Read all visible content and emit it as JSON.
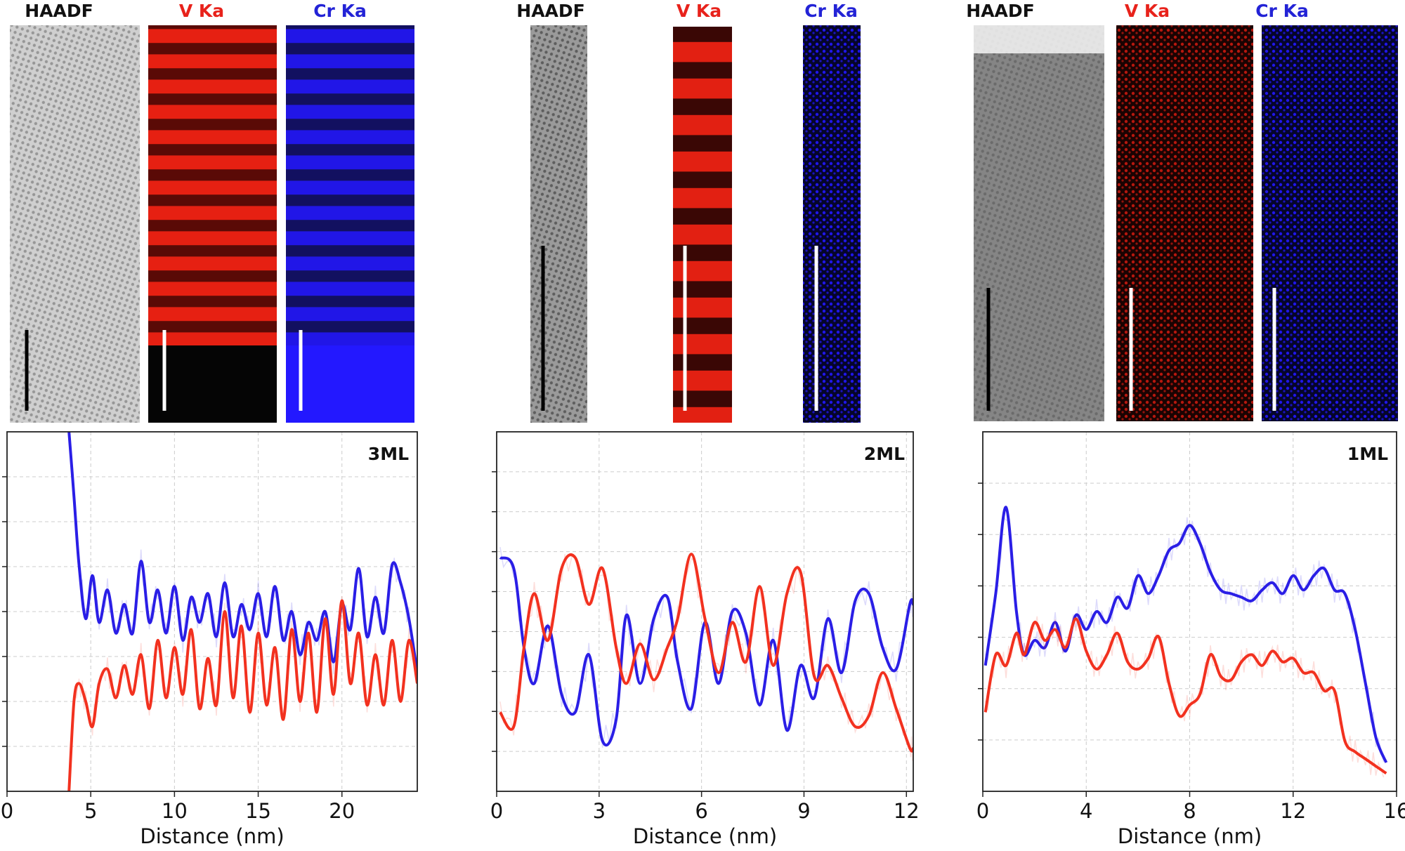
{
  "figure": {
    "xlabel": "Distance (nm)",
    "map_labels": [
      {
        "text": "HAADF",
        "color": "#111111"
      },
      {
        "text": "V Ka",
        "color": "#e8221b"
      },
      {
        "text": "Cr Ka",
        "color": "#2323d6"
      }
    ],
    "colors": {
      "v_line": "#f2311f",
      "cr_line": "#2a1ee6",
      "v_map": "#ff2414",
      "cr_map": "#2318ff"
    }
  },
  "chart_data": [
    {
      "type": "line",
      "panel": "3ML",
      "xlabel": "Distance (nm)",
      "xlim": [
        0,
        24.5
      ],
      "ylim": [
        0,
        1
      ],
      "xticks": [
        0,
        5,
        10,
        15,
        20
      ],
      "yticks_unlabeled": 7,
      "series": [
        {
          "name": "Cr Ka",
          "color": "#2a1ee6",
          "x": [
            3.7,
            4.0,
            4.3,
            4.7,
            5.1,
            5.5,
            6.0,
            6.5,
            7.0,
            7.5,
            8.0,
            8.5,
            9.0,
            9.5,
            10.0,
            10.5,
            11.0,
            11.5,
            12.0,
            12.5,
            13.0,
            13.5,
            14.0,
            14.5,
            15.0,
            15.5,
            16.0,
            16.5,
            17.0,
            17.5,
            18.0,
            18.5,
            19.0,
            19.5,
            20.0,
            20.5,
            21.0,
            21.5,
            22.0,
            22.5,
            23.0,
            23.5,
            24.0,
            24.5
          ],
          "y": [
            1.0,
            0.82,
            0.63,
            0.48,
            0.6,
            0.47,
            0.56,
            0.44,
            0.52,
            0.44,
            0.64,
            0.47,
            0.56,
            0.44,
            0.57,
            0.42,
            0.54,
            0.47,
            0.55,
            0.43,
            0.58,
            0.43,
            0.52,
            0.45,
            0.55,
            0.43,
            0.57,
            0.42,
            0.5,
            0.38,
            0.47,
            0.42,
            0.5,
            0.36,
            0.52,
            0.45,
            0.62,
            0.43,
            0.54,
            0.44,
            0.63,
            0.58,
            0.48,
            0.33
          ]
        },
        {
          "name": "V Ka",
          "color": "#f2311f",
          "x": [
            3.7,
            4.0,
            4.3,
            4.7,
            5.1,
            5.5,
            6.0,
            6.5,
            7.0,
            7.5,
            8.0,
            8.5,
            9.0,
            9.5,
            10.0,
            10.5,
            11.0,
            11.5,
            12.0,
            12.5,
            13.0,
            13.5,
            14.0,
            14.5,
            15.0,
            15.5,
            16.0,
            16.5,
            17.0,
            17.5,
            18.0,
            18.5,
            19.0,
            19.5,
            20.0,
            20.5,
            21.0,
            21.5,
            22.0,
            22.5,
            23.0,
            23.5,
            24.0,
            24.5
          ],
          "y": [
            0.0,
            0.25,
            0.3,
            0.25,
            0.18,
            0.3,
            0.34,
            0.26,
            0.35,
            0.27,
            0.38,
            0.23,
            0.42,
            0.26,
            0.4,
            0.27,
            0.45,
            0.23,
            0.37,
            0.24,
            0.5,
            0.26,
            0.46,
            0.22,
            0.44,
            0.24,
            0.4,
            0.2,
            0.45,
            0.25,
            0.44,
            0.22,
            0.48,
            0.27,
            0.53,
            0.3,
            0.44,
            0.24,
            0.38,
            0.24,
            0.42,
            0.25,
            0.42,
            0.3
          ]
        }
      ],
      "annotation": "3ML"
    },
    {
      "type": "line",
      "panel": "2ML",
      "xlabel": "Distance (nm)",
      "xlim": [
        0,
        12.2
      ],
      "ylim": [
        0,
        1
      ],
      "xticks": [
        0,
        3,
        6,
        9,
        12
      ],
      "yticks_unlabeled": 8,
      "series": [
        {
          "name": "Cr Ka",
          "color": "#2a1ee6",
          "x": [
            0.1,
            0.5,
            0.8,
            1.1,
            1.5,
            1.9,
            2.3,
            2.7,
            3.1,
            3.5,
            3.8,
            4.2,
            4.6,
            5.0,
            5.3,
            5.7,
            6.1,
            6.5,
            6.9,
            7.3,
            7.7,
            8.1,
            8.5,
            8.9,
            9.3,
            9.7,
            10.1,
            10.5,
            10.9,
            11.3,
            11.7,
            12.1,
            12.2
          ],
          "y": [
            0.65,
            0.62,
            0.4,
            0.3,
            0.46,
            0.27,
            0.22,
            0.38,
            0.14,
            0.2,
            0.49,
            0.3,
            0.48,
            0.54,
            0.36,
            0.23,
            0.47,
            0.3,
            0.5,
            0.44,
            0.24,
            0.42,
            0.17,
            0.35,
            0.26,
            0.48,
            0.33,
            0.53,
            0.55,
            0.4,
            0.34,
            0.52,
            0.52
          ]
        },
        {
          "name": "V Ka",
          "color": "#f2311f",
          "x": [
            0.1,
            0.5,
            0.8,
            1.1,
            1.5,
            1.9,
            2.3,
            2.7,
            3.1,
            3.5,
            3.8,
            4.2,
            4.6,
            5.0,
            5.3,
            5.7,
            6.1,
            6.5,
            6.9,
            7.3,
            7.7,
            8.1,
            8.5,
            8.9,
            9.3,
            9.7,
            10.1,
            10.5,
            10.9,
            11.3,
            11.7,
            12.1,
            12.2
          ],
          "y": [
            0.22,
            0.18,
            0.4,
            0.55,
            0.42,
            0.62,
            0.65,
            0.52,
            0.62,
            0.4,
            0.3,
            0.41,
            0.31,
            0.4,
            0.48,
            0.66,
            0.48,
            0.33,
            0.47,
            0.36,
            0.57,
            0.35,
            0.55,
            0.61,
            0.32,
            0.35,
            0.26,
            0.18,
            0.21,
            0.33,
            0.23,
            0.12,
            0.12
          ]
        }
      ],
      "annotation": "2ML"
    },
    {
      "type": "line",
      "panel": "1ML",
      "xlabel": "Distance (nm)",
      "xlim": [
        0,
        16
      ],
      "ylim": [
        0,
        1
      ],
      "xticks": [
        0,
        4,
        8,
        12,
        16
      ],
      "yticks_unlabeled": 6,
      "series": [
        {
          "name": "Cr Ka",
          "color": "#2a1ee6",
          "x": [
            0.1,
            0.5,
            0.9,
            1.3,
            1.6,
            2.0,
            2.4,
            2.8,
            3.2,
            3.6,
            4.0,
            4.4,
            4.8,
            5.2,
            5.6,
            6.0,
            6.4,
            6.8,
            7.2,
            7.6,
            8.0,
            8.4,
            8.8,
            9.2,
            9.6,
            10.0,
            10.4,
            10.8,
            11.2,
            11.6,
            12.0,
            12.4,
            12.8,
            13.2,
            13.6,
            14.0,
            14.4,
            14.8,
            15.2,
            15.6
          ],
          "y": [
            0.35,
            0.55,
            0.79,
            0.5,
            0.38,
            0.42,
            0.4,
            0.47,
            0.39,
            0.49,
            0.45,
            0.5,
            0.47,
            0.54,
            0.51,
            0.6,
            0.55,
            0.6,
            0.67,
            0.69,
            0.74,
            0.69,
            0.61,
            0.56,
            0.55,
            0.54,
            0.53,
            0.56,
            0.58,
            0.55,
            0.6,
            0.56,
            0.6,
            0.62,
            0.56,
            0.55,
            0.45,
            0.3,
            0.15,
            0.08
          ]
        },
        {
          "name": "V Ka",
          "color": "#f2311f",
          "x": [
            0.1,
            0.5,
            0.9,
            1.3,
            1.6,
            2.0,
            2.4,
            2.8,
            3.2,
            3.6,
            4.0,
            4.4,
            4.8,
            5.2,
            5.6,
            6.0,
            6.4,
            6.8,
            7.2,
            7.6,
            8.0,
            8.4,
            8.8,
            9.2,
            9.6,
            10.0,
            10.4,
            10.8,
            11.2,
            11.6,
            12.0,
            12.4,
            12.8,
            13.2,
            13.6,
            14.0,
            14.4,
            14.8,
            15.2,
            15.6
          ],
          "y": [
            0.22,
            0.38,
            0.35,
            0.44,
            0.38,
            0.47,
            0.42,
            0.45,
            0.4,
            0.48,
            0.39,
            0.34,
            0.38,
            0.44,
            0.36,
            0.34,
            0.37,
            0.43,
            0.3,
            0.21,
            0.24,
            0.27,
            0.38,
            0.32,
            0.31,
            0.36,
            0.38,
            0.35,
            0.39,
            0.36,
            0.37,
            0.33,
            0.33,
            0.28,
            0.28,
            0.14,
            0.11,
            0.09,
            0.07,
            0.05
          ]
        }
      ],
      "annotation": "1ML"
    }
  ]
}
